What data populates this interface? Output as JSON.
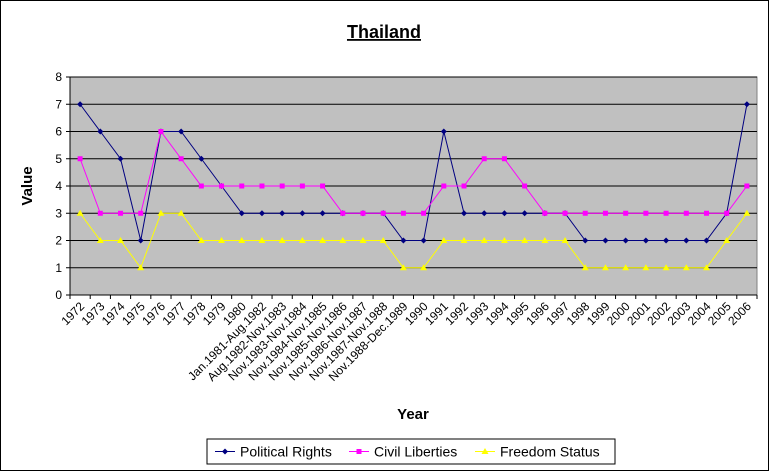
{
  "chart_data": {
    "type": "line",
    "title": "Thailand",
    "xlabel": "Year",
    "ylabel": "Value",
    "ylim": [
      0,
      8
    ],
    "yticks": [
      "0",
      "1",
      "2",
      "3",
      "4",
      "5",
      "6",
      "7",
      "8"
    ],
    "grid": true,
    "legend_position": "bottom",
    "colors": {
      "plot_background": "#c0c0c0",
      "gridline": "#000000"
    },
    "categories": [
      "1972",
      "1973",
      "1974",
      "1975",
      "1976",
      "1977",
      "1978",
      "1979",
      "1980",
      "Jan.1981-Aug.1982",
      "Aug.1982-Nov.1983",
      "Nov.1983-Nov.1984",
      "Nov.1984-Nov.1985",
      "Nov.1985-Nov.1986",
      "Nov.1986-Nov.1987",
      "Nov.1987-Nov.1988",
      "Nov.1988-Dec.1989",
      "1990",
      "1991",
      "1992",
      "1993",
      "1994",
      "1995",
      "1996",
      "1997",
      "1998",
      "1999",
      "2000",
      "2001",
      "2002",
      "2003",
      "2004",
      "2005",
      "2006"
    ],
    "series": [
      {
        "name": "Political Rights",
        "color": "#000080",
        "marker": "diamond",
        "values": [
          7,
          6,
          5,
          2,
          6,
          6,
          5,
          4,
          3,
          3,
          3,
          3,
          3,
          3,
          3,
          3,
          2,
          2,
          6,
          3,
          3,
          3,
          3,
          3,
          3,
          2,
          2,
          2,
          2,
          2,
          2,
          2,
          3,
          7
        ]
      },
      {
        "name": "Civil Liberties",
        "color": "#ff00ff",
        "marker": "square",
        "values": [
          5,
          3,
          3,
          3,
          6,
          5,
          4,
          4,
          4,
          4,
          4,
          4,
          4,
          3,
          3,
          3,
          3,
          3,
          4,
          4,
          5,
          5,
          4,
          3,
          3,
          3,
          3,
          3,
          3,
          3,
          3,
          3,
          3,
          4
        ]
      },
      {
        "name": "Freedom Status",
        "color": "#ffff00",
        "marker": "triangle",
        "values": [
          3,
          2,
          2,
          1,
          3,
          3,
          2,
          2,
          2,
          2,
          2,
          2,
          2,
          2,
          2,
          2,
          1,
          1,
          2,
          2,
          2,
          2,
          2,
          2,
          2,
          1,
          1,
          1,
          1,
          1,
          1,
          1,
          2,
          3
        ]
      }
    ]
  }
}
